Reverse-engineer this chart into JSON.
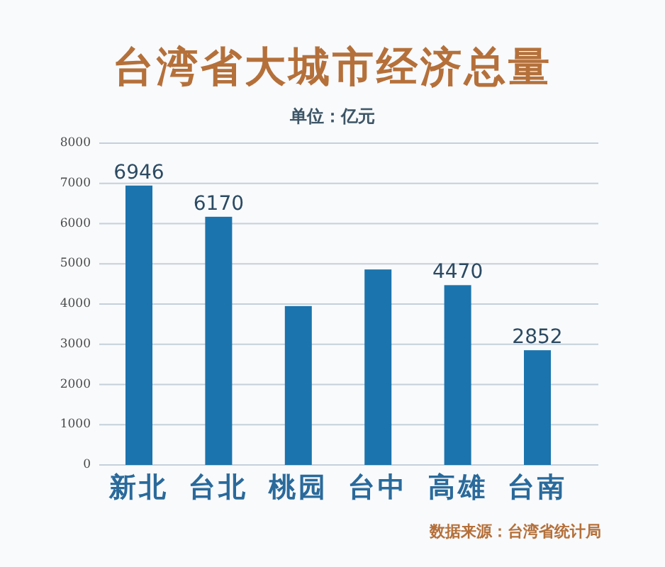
{
  "chart_data": {
    "type": "bar",
    "title": "台湾省大城市经济总量",
    "subtitle": "单位：亿元",
    "categories": [
      "新北",
      "台北",
      "桃园",
      "台中",
      "高雄",
      "台南"
    ],
    "values": [
      6946,
      6170,
      3950,
      4860,
      4470,
      2852
    ],
    "value_labels": [
      "6946",
      "6170",
      null,
      null,
      "4470",
      "2852"
    ],
    "color": "#1b74ad",
    "ylim": [
      0,
      8000
    ],
    "yticks": [
      0,
      1000,
      2000,
      3000,
      4000,
      5000,
      6000,
      7000,
      8000
    ],
    "grid": "y",
    "annotations": [
      "数据来源：台湾省统计局"
    ]
  }
}
